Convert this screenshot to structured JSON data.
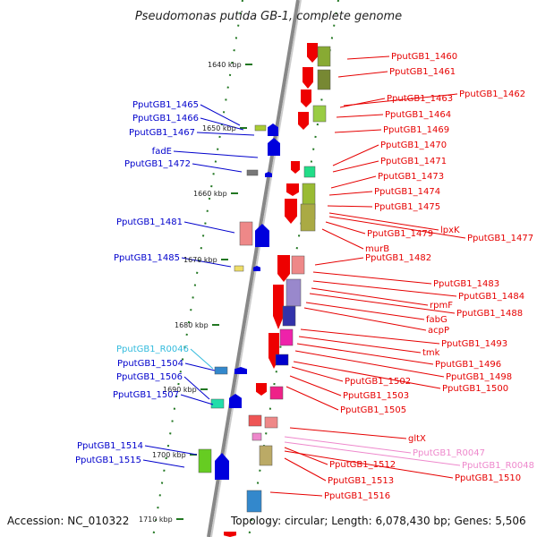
{
  "title": "Pseudomonas putida GB-1, complete genome",
  "accession": "Accession: NC_010322",
  "topology": "Topology: circular; Length: 6,078,430 bp; Genes: 5,506",
  "colors": {
    "forward": "#e60000",
    "reverse": "#0000cc",
    "rna": "#33bbdd",
    "pseudo": "#ee88cc",
    "backbone": "#888888",
    "tick": "#227722"
  },
  "kbp_labels": [
    "1640 kbp",
    "1650 kbp",
    "1660 kbp",
    "1670 kbp",
    "1680 kbp",
    "1690 kbp",
    "1700 kbp",
    "1710 kbp"
  ],
  "left_labels": [
    {
      "text": "PputGB1_1465",
      "kind": "reverse"
    },
    {
      "text": "PputGB1_1466",
      "kind": "reverse"
    },
    {
      "text": "PputGB1_1467",
      "kind": "reverse"
    },
    {
      "text": "fadE",
      "kind": "reverse"
    },
    {
      "text": "PputGB1_1472",
      "kind": "reverse"
    },
    {
      "text": "PputGB1_1481",
      "kind": "reverse"
    },
    {
      "text": "PputGB1_1485",
      "kind": "reverse"
    },
    {
      "text": "PputGB1_R0046",
      "kind": "rna"
    },
    {
      "text": "PputGB1_1504",
      "kind": "reverse"
    },
    {
      "text": "PputGB1_1506",
      "kind": "reverse"
    },
    {
      "text": "PputGB1_1507",
      "kind": "reverse"
    },
    {
      "text": "PputGB1_1514",
      "kind": "reverse"
    },
    {
      "text": "PputGB1_1515",
      "kind": "reverse"
    }
  ],
  "right_labels": [
    {
      "text": "PputGB1_1460",
      "kind": "forward"
    },
    {
      "text": "PputGB1_1461",
      "kind": "forward"
    },
    {
      "text": "PputGB1_1462",
      "kind": "forward"
    },
    {
      "text": "PputGB1_1463",
      "kind": "forward"
    },
    {
      "text": "PputGB1_1464",
      "kind": "forward"
    },
    {
      "text": "PputGB1_1469",
      "kind": "forward"
    },
    {
      "text": "PputGB1_1470",
      "kind": "forward"
    },
    {
      "text": "PputGB1_1471",
      "kind": "forward"
    },
    {
      "text": "PputGB1_1473",
      "kind": "forward"
    },
    {
      "text": "PputGB1_1474",
      "kind": "forward"
    },
    {
      "text": "PputGB1_1475",
      "kind": "forward"
    },
    {
      "text": "lpxK",
      "kind": "forward"
    },
    {
      "text": "PputGB1_1477",
      "kind": "forward"
    },
    {
      "text": "PputGB1_1479",
      "kind": "forward"
    },
    {
      "text": "murB",
      "kind": "forward"
    },
    {
      "text": "PputGB1_1482",
      "kind": "forward"
    },
    {
      "text": "PputGB1_1483",
      "kind": "forward"
    },
    {
      "text": "PputGB1_1484",
      "kind": "forward"
    },
    {
      "text": "rpmF",
      "kind": "forward"
    },
    {
      "text": "PputGB1_1488",
      "kind": "forward"
    },
    {
      "text": "fabG",
      "kind": "forward"
    },
    {
      "text": "acpP",
      "kind": "forward"
    },
    {
      "text": "PputGB1_1493",
      "kind": "forward"
    },
    {
      "text": "tmk",
      "kind": "forward"
    },
    {
      "text": "PputGB1_1496",
      "kind": "forward"
    },
    {
      "text": "PputGB1_1498",
      "kind": "forward"
    },
    {
      "text": "PputGB1_1500",
      "kind": "forward"
    },
    {
      "text": "PputGB1_1502",
      "kind": "forward"
    },
    {
      "text": "PputGB1_1503",
      "kind": "forward"
    },
    {
      "text": "PputGB1_1505",
      "kind": "forward"
    },
    {
      "text": "gltX",
      "kind": "forward"
    },
    {
      "text": "PputGB1_R0047",
      "kind": "pseudo"
    },
    {
      "text": "PputGB1_R0048",
      "kind": "pseudo"
    },
    {
      "text": "PputGB1_1512",
      "kind": "forward"
    },
    {
      "text": "PputGB1_1510",
      "kind": "forward"
    },
    {
      "text": "PputGB1_1513",
      "kind": "forward"
    },
    {
      "text": "PputGB1_1516",
      "kind": "forward"
    }
  ]
}
